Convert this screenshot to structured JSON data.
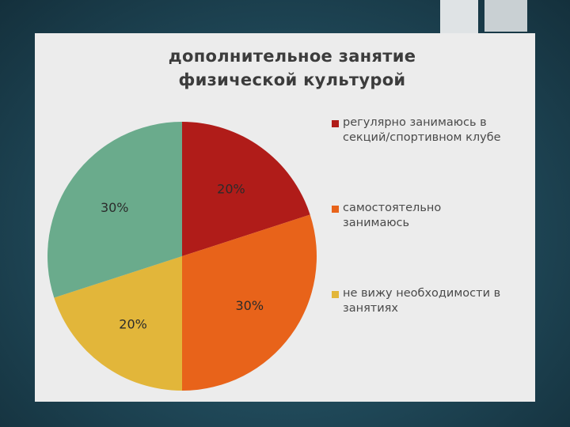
{
  "chart_data": {
    "type": "pie",
    "title": "дополнительное занятие физической культурой",
    "categories": [
      "регулярно занимаюсь в секций/спортивном клубе",
      "самостоятельно занимаюсь",
      "не вижу необходимости в занятиях",
      ""
    ],
    "values": [
      20,
      30,
      20,
      30
    ],
    "data_labels": [
      "20%",
      "30%",
      "20%",
      "30%"
    ],
    "colors": [
      "#b01c19",
      "#e8631a",
      "#e2b63a",
      "#6aab8c"
    ],
    "legend": {
      "placement": "right",
      "items": [
        {
          "label": "регулярно занимаюсь в секций/спортивном клубе",
          "color": "#b01c19"
        },
        {
          "label": "самостоятельно занимаюсь",
          "color": "#e8631a"
        },
        {
          "label": "не вижу необходимости в занятиях",
          "color": "#e2b63a"
        }
      ]
    }
  }
}
